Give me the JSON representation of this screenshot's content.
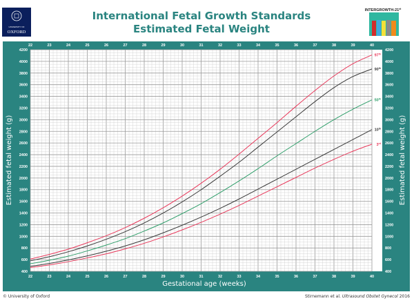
{
  "header": {
    "title_line1": "International Fetal Growth Standards",
    "title_line2": "Estimated Fetal Weight",
    "oxford_logo": {
      "line1": "UNIVERSITY OF",
      "line2": "OXFORD"
    },
    "intergrowth_label": "INTERGROWTH-21",
    "intergrowth_sup": "st"
  },
  "colors": {
    "teal": "#2a8480",
    "red": "#e8385a",
    "dark": "#3a3a3a",
    "green": "#2f9e6a",
    "title": "#2a8480",
    "oxford_blue": "#0b1f5c"
  },
  "footer": {
    "copyright": "© University of Oxford",
    "citation_authors": "Stirnemann et al. ",
    "citation_journal": "Ultrasound Obstet Gynecol",
    "citation_year": " 2016"
  },
  "chart_data": {
    "type": "line",
    "xlabel": "Gestational age (weeks)",
    "ylabel": "Estimated fetal weight (g)",
    "xlim": [
      22,
      40
    ],
    "ylim": [
      400,
      4200
    ],
    "xticks": [
      22,
      23,
      24,
      25,
      26,
      27,
      28,
      29,
      30,
      31,
      32,
      33,
      34,
      35,
      36,
      37,
      38,
      39,
      40
    ],
    "yticks": [
      400,
      600,
      800,
      1000,
      1200,
      1400,
      1600,
      1800,
      2000,
      2200,
      2400,
      2600,
      2800,
      3000,
      3200,
      3400,
      3600,
      3800,
      4000,
      4200
    ],
    "grid": true,
    "x": [
      22,
      23,
      24,
      25,
      26,
      27,
      28,
      29,
      30,
      31,
      32,
      33,
      34,
      35,
      36,
      37,
      38,
      39,
      40
    ],
    "series": [
      {
        "name": "97th",
        "label": "97",
        "sup": "th",
        "color": "#e8385a",
        "values": [
          610,
          690,
          780,
          890,
          1010,
          1150,
          1310,
          1490,
          1690,
          1910,
          2150,
          2410,
          2680,
          2950,
          3230,
          3500,
          3750,
          3960,
          4110
        ]
      },
      {
        "name": "90th",
        "label": "90",
        "sup": "th",
        "color": "#3a3a3a",
        "values": [
          580,
          650,
          735,
          835,
          950,
          1080,
          1230,
          1400,
          1590,
          1800,
          2030,
          2270,
          2530,
          2790,
          3050,
          3310,
          3550,
          3740,
          3870
        ]
      },
      {
        "name": "50th",
        "label": "50",
        "sup": "th",
        "color": "#2f9e6a",
        "values": [
          530,
          590,
          660,
          750,
          850,
          960,
          1090,
          1230,
          1390,
          1560,
          1750,
          1950,
          2160,
          2380,
          2590,
          2800,
          3000,
          3180,
          3340
        ]
      },
      {
        "name": "10th",
        "label": "10",
        "sup": "th",
        "color": "#3a3a3a",
        "values": [
          485,
          535,
          595,
          665,
          745,
          835,
          940,
          1060,
          1190,
          1330,
          1480,
          1640,
          1810,
          1980,
          2150,
          2320,
          2490,
          2660,
          2830
        ]
      },
      {
        "name": "3rd",
        "label": "3",
        "sup": "rd",
        "color": "#e8385a",
        "values": [
          465,
          510,
          565,
          630,
          700,
          785,
          880,
          990,
          1110,
          1240,
          1380,
          1530,
          1690,
          1850,
          2010,
          2170,
          2320,
          2460,
          2580
        ]
      }
    ]
  }
}
